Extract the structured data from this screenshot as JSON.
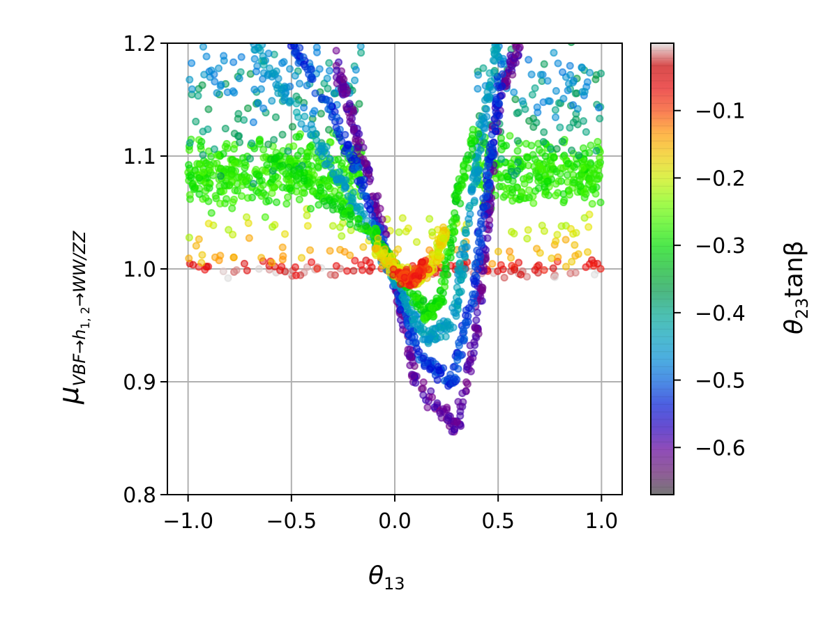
{
  "chart_data": {
    "type": "scatter",
    "xlabel": "θ13",
    "xlabel_main": "θ",
    "xlabel_sub": "13",
    "ylabel": "μ VBF→h1,2→WW/ZZ",
    "ylabel_main": "μ",
    "ylabel_sub": "VBF→h",
    "ylabel_sub2": "1, 2",
    "ylabel_sub3": "→WW/ZZ",
    "colorbar_label": "θ23tanβ",
    "colorbar_main": "θ",
    "colorbar_sub": "23",
    "colorbar_suffix": "tanβ",
    "xlim": [
      -1.1,
      1.1
    ],
    "ylim": [
      0.8,
      1.2
    ],
    "xticks": [
      -1.0,
      -0.5,
      0.0,
      0.5,
      1.0
    ],
    "xtick_labels": [
      "−1.0",
      "−0.5",
      "0.0",
      "0.5",
      "1.0"
    ],
    "yticks": [
      0.8,
      0.9,
      1.0,
      1.1,
      1.2
    ],
    "ytick_labels": [
      "0.8",
      "0.9",
      "1.0",
      "1.1",
      "1.2"
    ],
    "colorbar_range": [
      -0.67,
      0.0
    ],
    "colorbar_ticks": [
      -0.1,
      -0.2,
      -0.3,
      -0.4,
      -0.5,
      -0.6
    ],
    "colorbar_tick_labels": [
      "−0.1",
      "−0.2",
      "−0.3",
      "−0.4",
      "−0.5",
      "−0.6"
    ],
    "colormap": "nipy_spectral (reversed), alpha 0.5",
    "grid": true,
    "marker": "circle, edge in same color",
    "clusters": [
      {
        "z": -0.01,
        "x_range": [
          -1.0,
          1.0
        ],
        "y_center": 0.997,
        "y_spread": 0.004,
        "count": 60
      },
      {
        "z": -0.07,
        "x_range": [
          -1.0,
          1.0
        ],
        "y_center": 1.002,
        "y_spread": 0.006,
        "count": 70
      },
      {
        "z": -0.15,
        "x_range": [
          -1.0,
          1.0
        ],
        "y_center": 1.015,
        "y_spread": 0.01,
        "count": 50
      },
      {
        "z": -0.2,
        "x_range": [
          -1.0,
          1.0
        ],
        "y_center": 1.035,
        "y_spread": 0.012,
        "count": 50
      },
      {
        "z": -0.28,
        "x_range": [
          -1.0,
          1.0
        ],
        "y_center": 1.085,
        "y_spread": 0.025,
        "count": 900
      },
      {
        "z": -0.38,
        "x_range": [
          -1.0,
          1.0
        ],
        "y_center": 1.14,
        "y_spread": 0.05,
        "count": 200
      },
      {
        "z": -0.47,
        "x_range": [
          -1.0,
          1.0
        ],
        "y_center": 1.17,
        "y_spread": 0.03,
        "count": 160
      }
    ],
    "curves": [
      {
        "z": -0.6,
        "points": [
          [
            -0.3,
            1.19
          ],
          [
            -0.2,
            1.13
          ],
          [
            -0.1,
            1.06
          ],
          [
            0.0,
            0.99
          ],
          [
            0.1,
            0.9
          ],
          [
            0.3,
            0.86
          ],
          [
            0.4,
            0.95
          ],
          [
            0.45,
            1.05
          ],
          [
            0.5,
            1.15
          ],
          [
            0.6,
            1.2
          ]
        ]
      },
      {
        "z": -0.52,
        "points": [
          [
            -0.5,
            1.2
          ],
          [
            -0.3,
            1.14
          ],
          [
            -0.15,
            1.07
          ],
          [
            0.0,
            0.99
          ],
          [
            0.12,
            0.92
          ],
          [
            0.28,
            0.9
          ],
          [
            0.38,
            0.98
          ],
          [
            0.45,
            1.08
          ],
          [
            0.52,
            1.18
          ]
        ]
      },
      {
        "z": -0.44,
        "points": [
          [
            -0.7,
            1.2
          ],
          [
            -0.4,
            1.12
          ],
          [
            -0.2,
            1.06
          ],
          [
            0.0,
            0.99
          ],
          [
            0.15,
            0.94
          ],
          [
            0.28,
            0.95
          ],
          [
            0.35,
            1.03
          ],
          [
            0.42,
            1.12
          ],
          [
            0.5,
            1.2
          ]
        ]
      },
      {
        "z": -0.3,
        "points": [
          [
            -0.6,
            1.1
          ],
          [
            -0.3,
            1.06
          ],
          [
            -0.1,
            1.03
          ],
          [
            0.0,
            1.0
          ],
          [
            0.15,
            0.96
          ],
          [
            0.22,
            0.97
          ],
          [
            0.3,
            1.06
          ],
          [
            0.4,
            1.13
          ]
        ]
      },
      {
        "z": -0.18,
        "points": [
          [
            -0.1,
            1.02
          ],
          [
            0.0,
            1.0
          ],
          [
            0.1,
            0.99
          ],
          [
            0.2,
            1.01
          ],
          [
            0.25,
            1.035
          ]
        ]
      },
      {
        "z": -0.09,
        "points": [
          [
            0.0,
            0.997
          ],
          [
            0.08,
            0.99
          ],
          [
            0.15,
            1.005
          ]
        ]
      }
    ]
  }
}
